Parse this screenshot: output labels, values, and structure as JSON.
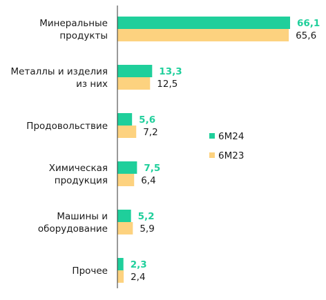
{
  "chart_data": {
    "type": "bar",
    "orientation": "horizontal",
    "categories": [
      [
        "Минеральные",
        "продукты"
      ],
      [
        "Металлы и изделия",
        "из них"
      ],
      [
        "Продовольствие"
      ],
      [
        "Химическая",
        "продукция"
      ],
      [
        "Машины и",
        "оборудование"
      ],
      [
        "Прочее"
      ]
    ],
    "series": [
      {
        "name": "6М24",
        "values": [
          66.1,
          13.3,
          5.6,
          7.5,
          5.2,
          2.3
        ],
        "labels": [
          "66,1",
          "13,3",
          "5,6",
          "7,5",
          "5,2",
          "2,3"
        ],
        "color": "#1fcf9b"
      },
      {
        "name": "6М23",
        "values": [
          65.6,
          12.5,
          7.2,
          6.4,
          5.9,
          2.4
        ],
        "labels": [
          "65,6",
          "12,5",
          "7,2",
          "6,4",
          "5,9",
          "2,4"
        ],
        "color": "#fdd27f"
      }
    ],
    "xlim": [
      0,
      70
    ],
    "grid": false,
    "legend_position": "center-right",
    "axis_color": "#333333"
  }
}
